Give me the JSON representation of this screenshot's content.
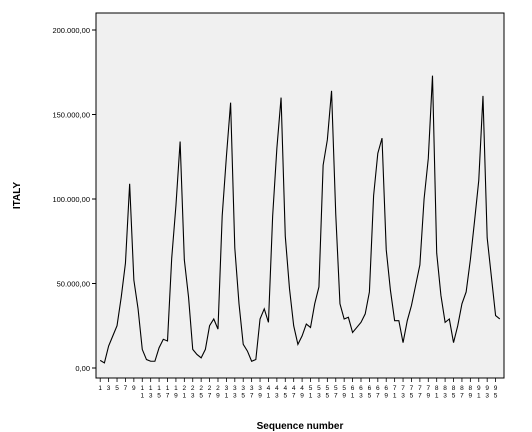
{
  "chart_data": {
    "type": "line",
    "xlabel": "Sequence number",
    "ylabel": "ITALY",
    "ylim": [
      0,
      200000
    ],
    "y_ticks": [
      0,
      50000,
      100000,
      150000,
      200000
    ],
    "y_tick_labels": [
      "0,00",
      "50.000,00",
      "100.000,00",
      "150.000,00",
      "200.000,00"
    ],
    "grid": false,
    "x_ticks": [
      1,
      3,
      5,
      7,
      9,
      11,
      13,
      15,
      17,
      19,
      21,
      23,
      25,
      27,
      29,
      31,
      33,
      35,
      37,
      39,
      41,
      43,
      45,
      47,
      49,
      51,
      53,
      55,
      57,
      59,
      61,
      63,
      65,
      67,
      69,
      71,
      73,
      75,
      77,
      79,
      81,
      83,
      85,
      87,
      89,
      91,
      93,
      95
    ],
    "x": [
      1,
      2,
      3,
      4,
      5,
      6,
      7,
      8,
      9,
      10,
      11,
      12,
      13,
      14,
      15,
      16,
      17,
      18,
      19,
      20,
      21,
      22,
      23,
      24,
      25,
      26,
      27,
      28,
      29,
      30,
      31,
      32,
      33,
      34,
      35,
      36,
      37,
      38,
      39,
      40,
      41,
      42,
      43,
      44,
      45,
      46,
      47,
      48,
      49,
      50,
      51,
      52,
      53,
      54,
      55,
      56,
      57,
      58,
      59,
      60,
      61,
      62,
      63,
      64,
      65,
      66,
      67,
      68,
      69,
      70,
      71,
      72,
      73,
      74,
      75,
      76,
      77,
      78,
      79,
      80,
      81,
      82,
      83,
      84,
      85,
      86,
      87,
      88,
      89,
      90,
      91,
      92,
      93,
      94,
      95,
      96
    ],
    "series": [
      {
        "values": [
          4500,
          3000,
          13000,
          19000,
          25000,
          42000,
          62000,
          109000,
          52000,
          35000,
          11000,
          5000,
          4000,
          4000,
          12000,
          17000,
          16000,
          65000,
          96000,
          134000,
          64000,
          42000,
          11000,
          8000,
          6000,
          11000,
          25000,
          29000,
          23000,
          90000,
          125000,
          157000,
          71000,
          38000,
          14000,
          10000,
          4000,
          5000,
          29000,
          35000,
          27000,
          90000,
          130000,
          160000,
          78000,
          47000,
          25000,
          14000,
          19000,
          26000,
          24000,
          38000,
          48000,
          120000,
          135000,
          164000,
          91000,
          38000,
          29000,
          30000,
          21000,
          24000,
          27000,
          32000,
          45000,
          102000,
          127000,
          136000,
          70000,
          46000,
          28000,
          28000,
          15000,
          28000,
          37000,
          49000,
          61000,
          100000,
          124000,
          173000,
          68000,
          43000,
          27000,
          29000,
          15000,
          25000,
          38000,
          45000,
          64000,
          87000,
          111000,
          161000,
          77000,
          54000,
          31000,
          29000
        ]
      }
    ]
  }
}
